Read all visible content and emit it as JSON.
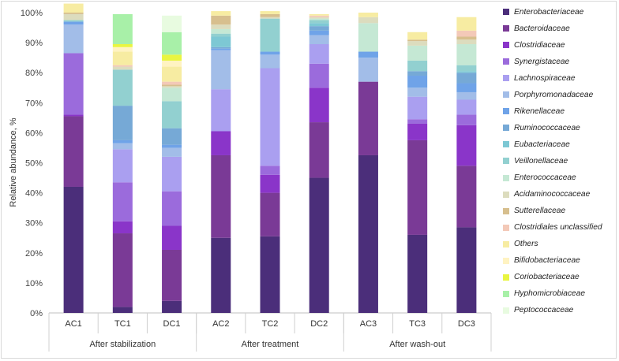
{
  "chart_data": {
    "type": "bar",
    "stacked": true,
    "ylabel": "Relative abundance, %",
    "ylim": [
      0,
      100
    ],
    "yticks": [
      "0%",
      "10%",
      "20%",
      "30%",
      "40%",
      "50%",
      "60%",
      "70%",
      "80%",
      "90%",
      "100%"
    ],
    "categories": [
      "AC1",
      "TC1",
      "DC1",
      "AC2",
      "TC2",
      "DC2",
      "AC3",
      "TC3",
      "DC3"
    ],
    "groups": [
      {
        "label": "After stabilization",
        "categories": [
          "AC1",
          "TC1",
          "DC1"
        ]
      },
      {
        "label": "After treatment",
        "categories": [
          "AC2",
          "TC2",
          "DC2"
        ]
      },
      {
        "label": "After wash-out",
        "categories": [
          "AC3",
          "TC3",
          "DC3"
        ]
      }
    ],
    "legend_position": "right",
    "grid": false,
    "series": [
      {
        "name": "Enterobacteriaceae",
        "color": "#4b2e7a",
        "values": [
          42,
          2,
          4,
          25,
          25.5,
          45,
          52.5,
          26,
          28.5
        ]
      },
      {
        "name": "Bacteroidaceae",
        "color": "#7a3a96",
        "values": [
          23.5,
          24.5,
          17,
          27.5,
          14.5,
          18.5,
          24.5,
          31.5,
          20.5
        ]
      },
      {
        "name": "Clostridiaceae",
        "color": "#8a35c9",
        "values": [
          0.5,
          4,
          8,
          8,
          6,
          11.5,
          0,
          5.5,
          13.5
        ]
      },
      {
        "name": "Synergistaceae",
        "color": "#9b6bdc",
        "values": [
          20.5,
          13,
          11.5,
          0,
          3,
          8,
          0,
          1.5,
          3.5
        ]
      },
      {
        "name": "Lachnospiraceae",
        "color": "#aa9ff0",
        "values": [
          0,
          11,
          11.5,
          14,
          32.5,
          6.5,
          0,
          7.5,
          5
        ]
      },
      {
        "name": "Porphyromonadaceae",
        "color": "#a2bde8",
        "values": [
          9.5,
          2,
          3,
          13,
          4.5,
          3,
          8,
          3,
          2.5
        ]
      },
      {
        "name": "Rikenellaceae",
        "color": "#6fa3e8",
        "values": [
          1,
          1,
          1,
          0.5,
          1,
          1.5,
          2,
          4,
          3
        ]
      },
      {
        "name": "Ruminococcaceae",
        "color": "#76a9d6",
        "values": [
          0,
          11.5,
          5.5,
          0.5,
          0,
          1.5,
          0,
          1.5,
          3.5
        ]
      },
      {
        "name": "Eubacteriaceae",
        "color": "#7dc8d4",
        "values": [
          0,
          0,
          0,
          3.5,
          0,
          1,
          0,
          0,
          0.5
        ]
      },
      {
        "name": "Veillonellaceae",
        "color": "#92d0d0",
        "values": [
          0.5,
          12,
          9,
          1,
          11,
          1,
          0,
          3.5,
          2
        ]
      },
      {
        "name": "Enterococcaceae",
        "color": "#c5e8d4",
        "values": [
          0,
          0,
          4.5,
          1.5,
          0,
          0.5,
          9.5,
          5,
          7
        ]
      },
      {
        "name": "Acidaminococcaceae",
        "color": "#dcdcbe",
        "values": [
          2,
          1,
          0.5,
          1.5,
          0.5,
          0.5,
          2,
          1.5,
          1.5
        ]
      },
      {
        "name": "Sutterellaceae",
        "color": "#d7bf8e",
        "values": [
          0.5,
          0,
          0.5,
          3,
          1,
          0,
          0,
          0.5,
          1
        ]
      },
      {
        "name": "Clostridiales unclassified",
        "color": "#f3c9b8",
        "values": [
          0,
          0.5,
          1,
          0,
          0,
          0.5,
          0,
          0,
          2
        ]
      },
      {
        "name": "Others",
        "color": "#f7eca2",
        "values": [
          3,
          4.5,
          5,
          1.5,
          1,
          0.5,
          1.5,
          2.5,
          4.5
        ]
      },
      {
        "name": "Bifidobacteriaceae",
        "color": "#fff3c2",
        "values": [
          0,
          1.5,
          2,
          0,
          0,
          0,
          0,
          0,
          0
        ]
      },
      {
        "name": "Coriobacteriaceae",
        "color": "#e9f541",
        "values": [
          0,
          1,
          2,
          0,
          0,
          0,
          0,
          0,
          0
        ]
      },
      {
        "name": "Hyphomicrobiaceae",
        "color": "#a8f0a8",
        "values": [
          0,
          10,
          7.5,
          0,
          0,
          0,
          0,
          0,
          0
        ]
      },
      {
        "name": "Peptococcaceae",
        "color": "#e8fbe0",
        "values": [
          0,
          0,
          5.5,
          0,
          0,
          0,
          0,
          0,
          0
        ]
      }
    ]
  }
}
